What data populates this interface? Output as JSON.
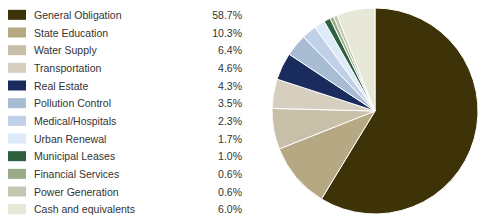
{
  "chart_data": {
    "type": "pie",
    "categories": [
      "General Obligation",
      "State Education",
      "Water Supply",
      "Transportation",
      "Real Estate",
      "Pollution Control",
      "Medical/Hospitals",
      "Urban Renewal",
      "Municipal Leases",
      "Financial Services",
      "Power Generation",
      "Cash and equivalents"
    ],
    "values": [
      58.7,
      10.3,
      6.4,
      4.6,
      4.3,
      3.5,
      2.3,
      1.7,
      1.0,
      0.6,
      0.6,
      6.0
    ],
    "value_labels": [
      "58.7%",
      "10.3%",
      "6.4%",
      "4.6%",
      "4.3%",
      "3.5%",
      "2.3%",
      "1.7%",
      "1.0%",
      "0.6%",
      "0.6%",
      "6.0%"
    ],
    "colors": [
      "#3d3208",
      "#b5a882",
      "#c8bfa8",
      "#d6cfc0",
      "#1a2b5e",
      "#a8bcd4",
      "#bfd0e8",
      "#ddeaf8",
      "#2e6040",
      "#9aab88",
      "#c0c8b0",
      "#e8e8d8"
    ],
    "legend": "left"
  }
}
